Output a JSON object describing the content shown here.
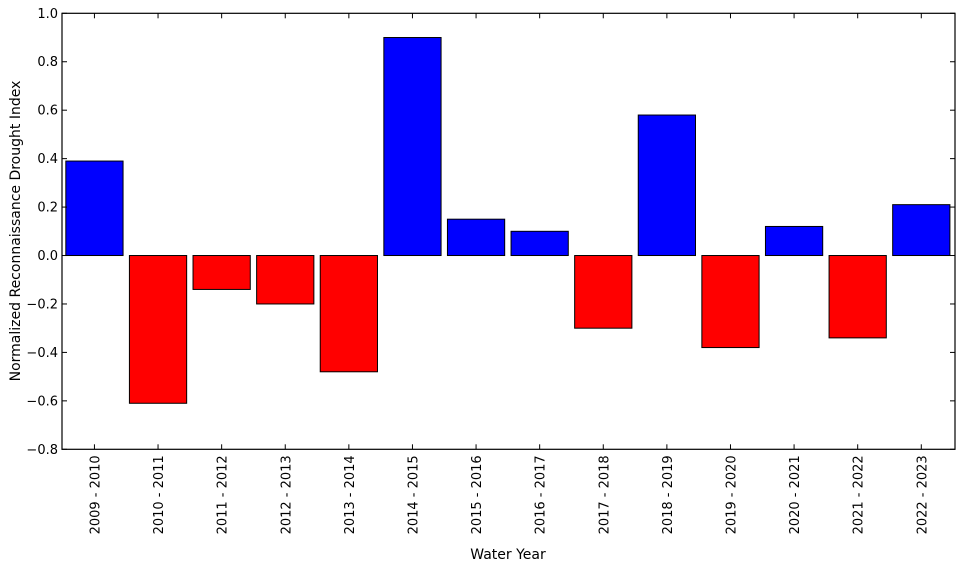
{
  "chart_data": {
    "type": "bar",
    "title": "",
    "xlabel": "Water Year",
    "ylabel": "Normalized Reconnaissance Drought Index",
    "ylim": [
      -0.8,
      1.0
    ],
    "yticks": [
      "1.0",
      "0.8",
      "0.6",
      "0.4",
      "0.2",
      "0.0",
      "−0.2",
      "−0.4",
      "−0.6",
      "−0.8"
    ],
    "ytick_values": [
      1.0,
      0.8,
      0.6,
      0.4,
      0.2,
      0.0,
      -0.2,
      -0.4,
      -0.6,
      -0.8
    ],
    "categories": [
      "2009 - 2010",
      "2010 - 2011",
      "2011 - 2012",
      "2012 - 2013",
      "2013 - 2014",
      "2014 - 2015",
      "2015 - 2016",
      "2016 - 2017",
      "2017 - 2018",
      "2018 - 2019",
      "2019 - 2020",
      "2020 - 2021",
      "2021 - 2022",
      "2022 - 2023"
    ],
    "values": [
      0.39,
      -0.61,
      -0.14,
      -0.2,
      -0.48,
      0.9,
      0.15,
      0.1,
      -0.3,
      0.58,
      -0.38,
      0.12,
      -0.34,
      0.21
    ],
    "colors": {
      "positive": "#0000ff",
      "negative": "#ff0000",
      "edge": "#000000"
    },
    "grid": false
  }
}
